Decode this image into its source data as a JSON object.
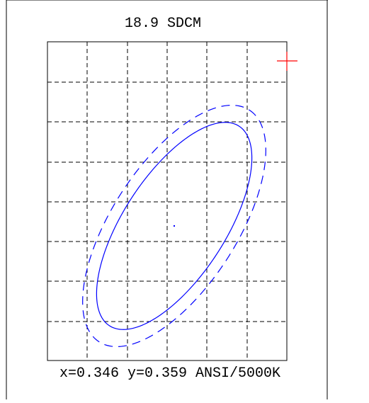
{
  "chart_data": {
    "type": "scatter",
    "title": "18.9 SDCM",
    "footer": "x=0.346 y=0.359 ANSI/5000K",
    "center": {
      "x": 0.346,
      "y": 0.359
    },
    "grid": true,
    "grid_style": "dashed",
    "ellipse_color": "#0000ff",
    "target_color": "#ff0000",
    "point_color": "#0000ff",
    "frame_color": "#000000"
  }
}
